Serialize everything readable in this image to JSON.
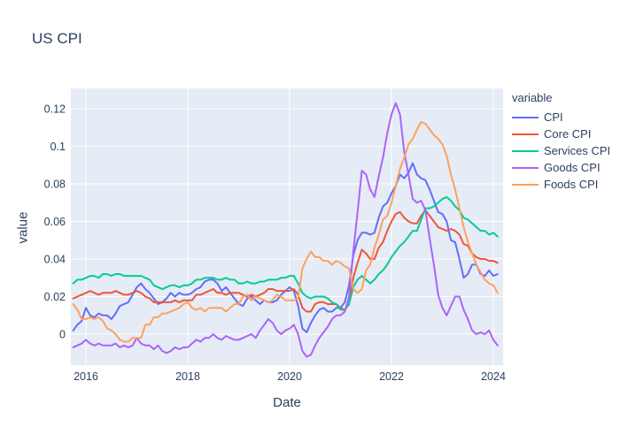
{
  "title": "US CPI",
  "axes": {
    "x_label": "Date",
    "y_label": "value",
    "x_ticks": [
      {
        "value": 2016,
        "label": "2016"
      },
      {
        "value": 2018,
        "label": "2018"
      },
      {
        "value": 2020,
        "label": "2020"
      },
      {
        "value": 2022,
        "label": "2022"
      },
      {
        "value": 2024,
        "label": "2024"
      }
    ],
    "y_ticks": [
      {
        "value": 0,
        "label": "0"
      },
      {
        "value": 0.02,
        "label": "0.02"
      },
      {
        "value": 0.04,
        "label": "0.04"
      },
      {
        "value": 0.06,
        "label": "0.06"
      },
      {
        "value": 0.08,
        "label": "0.08"
      },
      {
        "value": 0.1,
        "label": "0.1"
      },
      {
        "value": 0.12,
        "label": "0.12"
      }
    ]
  },
  "legend": {
    "title": "variable"
  },
  "plot": {
    "bg_color": "#e5ecf6",
    "grid_color": "#ffffff",
    "text_color": "#2a3f5f",
    "paper_color": "#ffffff",
    "line_width": 2
  },
  "chart_data": {
    "type": "line",
    "title": "US CPI",
    "xlabel": "Date",
    "ylabel": "value",
    "x_start": "2015-10",
    "x_end": "2024-02",
    "frequency": "monthly",
    "xlim": [
      2015.7,
      2024.19
    ],
    "ylim": [
      -0.0165,
      0.1308
    ],
    "grid": true,
    "legend_title": "variable",
    "legend_position": "right",
    "series": [
      {
        "name": "CPI",
        "color": "#636efa",
        "values": [
          0.002,
          0.005,
          0.007,
          0.014,
          0.01,
          0.009,
          0.011,
          0.01,
          0.01,
          0.008,
          0.011,
          0.015,
          0.016,
          0.017,
          0.021,
          0.025,
          0.027,
          0.024,
          0.022,
          0.019,
          0.016,
          0.017,
          0.019,
          0.022,
          0.02,
          0.022,
          0.021,
          0.021,
          0.022,
          0.024,
          0.025,
          0.028,
          0.029,
          0.029,
          0.027,
          0.023,
          0.025,
          0.022,
          0.019,
          0.016,
          0.015,
          0.019,
          0.02,
          0.018,
          0.016,
          0.018,
          0.017,
          0.017,
          0.018,
          0.021,
          0.023,
          0.025,
          0.023,
          0.015,
          0.003,
          0.001,
          0.006,
          0.01,
          0.013,
          0.014,
          0.012,
          0.012,
          0.014,
          0.014,
          0.017,
          0.026,
          0.042,
          0.05,
          0.054,
          0.054,
          0.053,
          0.054,
          0.062,
          0.068,
          0.07,
          0.075,
          0.079,
          0.085,
          0.083,
          0.086,
          0.091,
          0.085,
          0.083,
          0.082,
          0.077,
          0.071,
          0.065,
          0.064,
          0.06,
          0.05,
          0.049,
          0.04,
          0.03,
          0.032,
          0.037,
          0.037,
          0.032,
          0.031,
          0.034,
          0.031,
          0.032
        ]
      },
      {
        "name": "Core CPI",
        "color": "#ef553b",
        "values": [
          0.019,
          0.02,
          0.021,
          0.022,
          0.023,
          0.022,
          0.021,
          0.022,
          0.022,
          0.022,
          0.023,
          0.022,
          0.021,
          0.021,
          0.022,
          0.023,
          0.022,
          0.02,
          0.019,
          0.017,
          0.017,
          0.017,
          0.017,
          0.017,
          0.018,
          0.017,
          0.018,
          0.018,
          0.018,
          0.021,
          0.021,
          0.022,
          0.023,
          0.024,
          0.022,
          0.022,
          0.021,
          0.022,
          0.022,
          0.022,
          0.021,
          0.02,
          0.021,
          0.02,
          0.021,
          0.022,
          0.024,
          0.024,
          0.023,
          0.023,
          0.023,
          0.023,
          0.024,
          0.021,
          0.014,
          0.012,
          0.012,
          0.016,
          0.017,
          0.017,
          0.016,
          0.016,
          0.016,
          0.014,
          0.013,
          0.016,
          0.03,
          0.038,
          0.045,
          0.043,
          0.04,
          0.04,
          0.046,
          0.049,
          0.055,
          0.06,
          0.064,
          0.065,
          0.062,
          0.06,
          0.059,
          0.059,
          0.063,
          0.066,
          0.063,
          0.06,
          0.057,
          0.056,
          0.055,
          0.056,
          0.055,
          0.053,
          0.048,
          0.047,
          0.043,
          0.041,
          0.04,
          0.04,
          0.039,
          0.039,
          0.038
        ]
      },
      {
        "name": "Services CPI",
        "color": "#00cc96",
        "values": [
          0.027,
          0.029,
          0.029,
          0.03,
          0.031,
          0.031,
          0.03,
          0.032,
          0.032,
          0.031,
          0.032,
          0.032,
          0.031,
          0.031,
          0.031,
          0.031,
          0.031,
          0.03,
          0.029,
          0.026,
          0.025,
          0.024,
          0.025,
          0.026,
          0.026,
          0.025,
          0.026,
          0.026,
          0.027,
          0.029,
          0.029,
          0.03,
          0.03,
          0.03,
          0.029,
          0.029,
          0.03,
          0.029,
          0.029,
          0.027,
          0.027,
          0.028,
          0.027,
          0.027,
          0.028,
          0.028,
          0.029,
          0.029,
          0.029,
          0.03,
          0.03,
          0.031,
          0.031,
          0.027,
          0.022,
          0.02,
          0.019,
          0.02,
          0.02,
          0.02,
          0.019,
          0.017,
          0.016,
          0.013,
          0.013,
          0.016,
          0.025,
          0.029,
          0.031,
          0.029,
          0.027,
          0.029,
          0.032,
          0.034,
          0.037,
          0.041,
          0.044,
          0.047,
          0.049,
          0.052,
          0.055,
          0.055,
          0.061,
          0.067,
          0.067,
          0.068,
          0.07,
          0.072,
          0.073,
          0.071,
          0.068,
          0.066,
          0.062,
          0.061,
          0.059,
          0.057,
          0.055,
          0.055,
          0.053,
          0.054,
          0.052
        ]
      },
      {
        "name": "Goods CPI",
        "color": "#ab63fa",
        "values": [
          -0.007,
          -0.006,
          -0.005,
          -0.003,
          -0.005,
          -0.006,
          -0.005,
          -0.006,
          -0.006,
          -0.006,
          -0.005,
          -0.007,
          -0.006,
          -0.007,
          -0.006,
          -0.002,
          -0.005,
          -0.006,
          -0.006,
          -0.008,
          -0.006,
          -0.009,
          -0.01,
          -0.009,
          -0.007,
          -0.008,
          -0.007,
          -0.007,
          -0.005,
          -0.003,
          -0.004,
          -0.002,
          -0.002,
          0.0,
          -0.002,
          -0.003,
          -0.001,
          -0.002,
          -0.003,
          -0.003,
          -0.002,
          -0.001,
          0.0,
          -0.002,
          0.002,
          0.005,
          0.008,
          0.006,
          0.002,
          0.0,
          0.002,
          0.003,
          0.005,
          0.0,
          -0.009,
          -0.012,
          -0.011,
          -0.006,
          -0.002,
          0.001,
          0.004,
          0.008,
          0.01,
          0.01,
          0.012,
          0.02,
          0.044,
          0.065,
          0.087,
          0.085,
          0.077,
          0.073,
          0.084,
          0.094,
          0.107,
          0.117,
          0.123,
          0.117,
          0.097,
          0.085,
          0.072,
          0.07,
          0.071,
          0.066,
          0.051,
          0.037,
          0.021,
          0.014,
          0.01,
          0.015,
          0.02,
          0.02,
          0.013,
          0.008,
          0.002,
          0.0,
          0.001,
          0.0,
          0.002,
          -0.003,
          -0.006
        ]
      },
      {
        "name": "Foods CPI",
        "color": "#ffa15a",
        "values": [
          0.016,
          0.013,
          0.008,
          0.008,
          0.009,
          0.008,
          0.009,
          0.007,
          0.003,
          0.002,
          0.0,
          -0.003,
          -0.004,
          -0.004,
          -0.002,
          -0.002,
          -0.002,
          0.005,
          0.005,
          0.009,
          0.009,
          0.011,
          0.011,
          0.012,
          0.013,
          0.014,
          0.016,
          0.017,
          0.014,
          0.013,
          0.014,
          0.012,
          0.014,
          0.014,
          0.014,
          0.014,
          0.012,
          0.014,
          0.016,
          0.016,
          0.02,
          0.021,
          0.018,
          0.02,
          0.019,
          0.018,
          0.017,
          0.018,
          0.021,
          0.02,
          0.018,
          0.018,
          0.018,
          0.019,
          0.035,
          0.04,
          0.044,
          0.041,
          0.041,
          0.039,
          0.039,
          0.037,
          0.039,
          0.038,
          0.036,
          0.035,
          0.024,
          0.022,
          0.024,
          0.034,
          0.037,
          0.046,
          0.053,
          0.061,
          0.063,
          0.07,
          0.079,
          0.088,
          0.094,
          0.101,
          0.104,
          0.109,
          0.113,
          0.112,
          0.109,
          0.106,
          0.104,
          0.101,
          0.095,
          0.085,
          0.077,
          0.067,
          0.057,
          0.049,
          0.043,
          0.037,
          0.033,
          0.029,
          0.027,
          0.026,
          0.022
        ]
      }
    ]
  }
}
